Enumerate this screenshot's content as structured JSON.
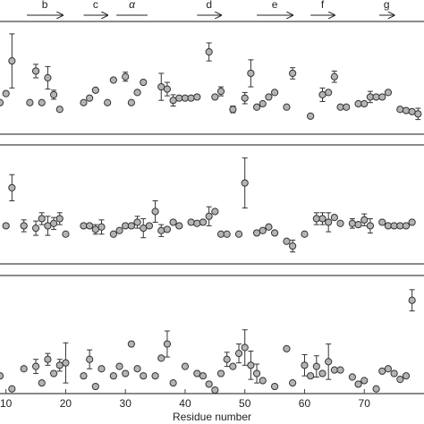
{
  "chart_data": [
    {
      "type": "scatter",
      "color": "#b4b4b4",
      "xlim": [
        9,
        80
      ],
      "ylim": [
        0,
        100
      ],
      "secondary_structure": [
        {
          "label": "b",
          "kind": "arrow",
          "start": 13.5,
          "end": 19.5
        },
        {
          "label": "c",
          "kind": "arrow",
          "start": 23,
          "end": 27
        },
        {
          "label": "α",
          "kind": "line",
          "start": 28.5,
          "end": 33.7
        },
        {
          "label": "d",
          "kind": "arrow",
          "start": 42,
          "end": 46
        },
        {
          "label": "e",
          "kind": "arrow",
          "start": 52,
          "end": 58
        },
        {
          "label": "f",
          "kind": "arrow",
          "start": 61,
          "end": 65
        },
        {
          "label": "g",
          "kind": "arrow",
          "start": 72.5,
          "end": 75
        }
      ],
      "x": [
        9,
        10,
        11,
        14,
        15,
        16,
        17,
        18,
        19,
        23,
        24,
        25,
        27,
        28,
        30,
        31,
        32,
        33,
        36,
        37,
        38,
        39,
        40,
        41,
        42,
        44,
        45,
        46,
        48,
        50,
        51,
        52,
        53,
        54,
        55,
        57,
        58,
        61,
        63,
        64,
        65,
        66,
        67,
        69,
        70,
        71,
        72,
        73,
        74,
        76,
        77,
        78,
        79
      ],
      "values": [
        28,
        36,
        65,
        28,
        56,
        28,
        50,
        35,
        22,
        28,
        32,
        39,
        28,
        48,
        51,
        28,
        37,
        46,
        42,
        40,
        30,
        32,
        32,
        32,
        33,
        73,
        33,
        38,
        22,
        32,
        54,
        24,
        27,
        33,
        37,
        24,
        54,
        16,
        35,
        37,
        51,
        24,
        24,
        27,
        27,
        33,
        33,
        33,
        37,
        22,
        21,
        20,
        18
      ],
      "errors": [
        null,
        null,
        24,
        null,
        6,
        null,
        10,
        4,
        null,
        null,
        null,
        null,
        null,
        null,
        4,
        null,
        null,
        null,
        12,
        6,
        5,
        null,
        null,
        null,
        null,
        8,
        null,
        4,
        3,
        5,
        12,
        null,
        null,
        null,
        null,
        null,
        5,
        null,
        6,
        null,
        5,
        null,
        null,
        null,
        null,
        5,
        null,
        null,
        null,
        null,
        null,
        null,
        5
      ]
    },
    {
      "type": "scatter",
      "color": "#b4b4b4",
      "xlim": [
        9,
        80
      ],
      "ylim": [
        0,
        100
      ],
      "x": [
        10,
        11,
        13,
        15,
        16,
        17,
        18,
        19,
        20,
        23,
        24,
        25,
        26,
        28,
        29,
        30,
        31,
        32,
        33,
        34,
        35,
        36,
        37,
        38,
        39,
        41,
        42,
        43,
        44,
        45,
        46,
        47,
        49,
        50,
        52,
        53,
        54,
        55,
        57,
        58,
        60,
        62,
        63,
        64,
        65,
        66,
        68,
        69,
        70,
        71,
        73,
        74,
        75,
        76,
        77,
        78
      ],
      "values": [
        32,
        64,
        32,
        30,
        38,
        32,
        34,
        38,
        25,
        32,
        32,
        29,
        31,
        25,
        28,
        32,
        32,
        35,
        30,
        32,
        44,
        28,
        29,
        35,
        32,
        35,
        34,
        35,
        40,
        44,
        25,
        25,
        25,
        68,
        26,
        28,
        31,
        26,
        19,
        15,
        25,
        38,
        38,
        35,
        39,
        34,
        34,
        33,
        37,
        32,
        35,
        32,
        32,
        32,
        32,
        35
      ],
      "errors": [
        null,
        11,
        5,
        6,
        5,
        8,
        5,
        5,
        null,
        null,
        null,
        4,
        6,
        null,
        null,
        null,
        null,
        5,
        8,
        null,
        9,
        5,
        null,
        null,
        null,
        null,
        null,
        null,
        8,
        null,
        null,
        null,
        null,
        21,
        null,
        null,
        null,
        null,
        null,
        5,
        null,
        5,
        5,
        8,
        null,
        null,
        4,
        null,
        5,
        6,
        null,
        null,
        null,
        null,
        null,
        null
      ]
    },
    {
      "type": "scatter",
      "color": "#b4b4b4",
      "xlim": [
        9,
        80
      ],
      "ylim": [
        0,
        100
      ],
      "xticks": [
        10,
        20,
        30,
        40,
        50,
        60,
        70
      ],
      "xlabel": "Residue number",
      "x": [
        9,
        11,
        13,
        15,
        16,
        17,
        18,
        19,
        20,
        23,
        24,
        25,
        26,
        28,
        29,
        30,
        31,
        32,
        33,
        35,
        36,
        37,
        38,
        40,
        42,
        43,
        44,
        45,
        46,
        47,
        48,
        49,
        50,
        51,
        52,
        53,
        55,
        57,
        58,
        60,
        61,
        62,
        63,
        64,
        65,
        66,
        68,
        69,
        70,
        72,
        73,
        74,
        75,
        76,
        77,
        78
      ],
      "values": [
        15,
        4,
        21,
        23,
        9,
        29,
        17,
        24,
        26,
        15,
        29,
        6,
        21,
        15,
        23,
        17,
        42,
        21,
        15,
        15,
        30,
        42,
        9,
        23,
        17,
        15,
        8,
        3,
        17,
        29,
        23,
        34,
        39,
        24,
        17,
        11,
        6,
        38,
        9,
        24,
        15,
        23,
        17,
        27,
        20,
        20,
        14,
        8,
        11,
        4,
        19,
        21,
        17,
        12,
        15,
        79
      ],
      "errors": [
        null,
        null,
        null,
        6,
        null,
        5,
        null,
        5,
        17,
        null,
        8,
        null,
        null,
        null,
        null,
        null,
        null,
        null,
        null,
        null,
        null,
        11,
        null,
        null,
        null,
        null,
        null,
        null,
        null,
        6,
        null,
        8,
        15,
        12,
        8,
        null,
        null,
        null,
        null,
        9,
        null,
        9,
        null,
        15,
        null,
        null,
        null,
        null,
        null,
        null,
        null,
        null,
        null,
        null,
        null,
        9
      ]
    }
  ]
}
